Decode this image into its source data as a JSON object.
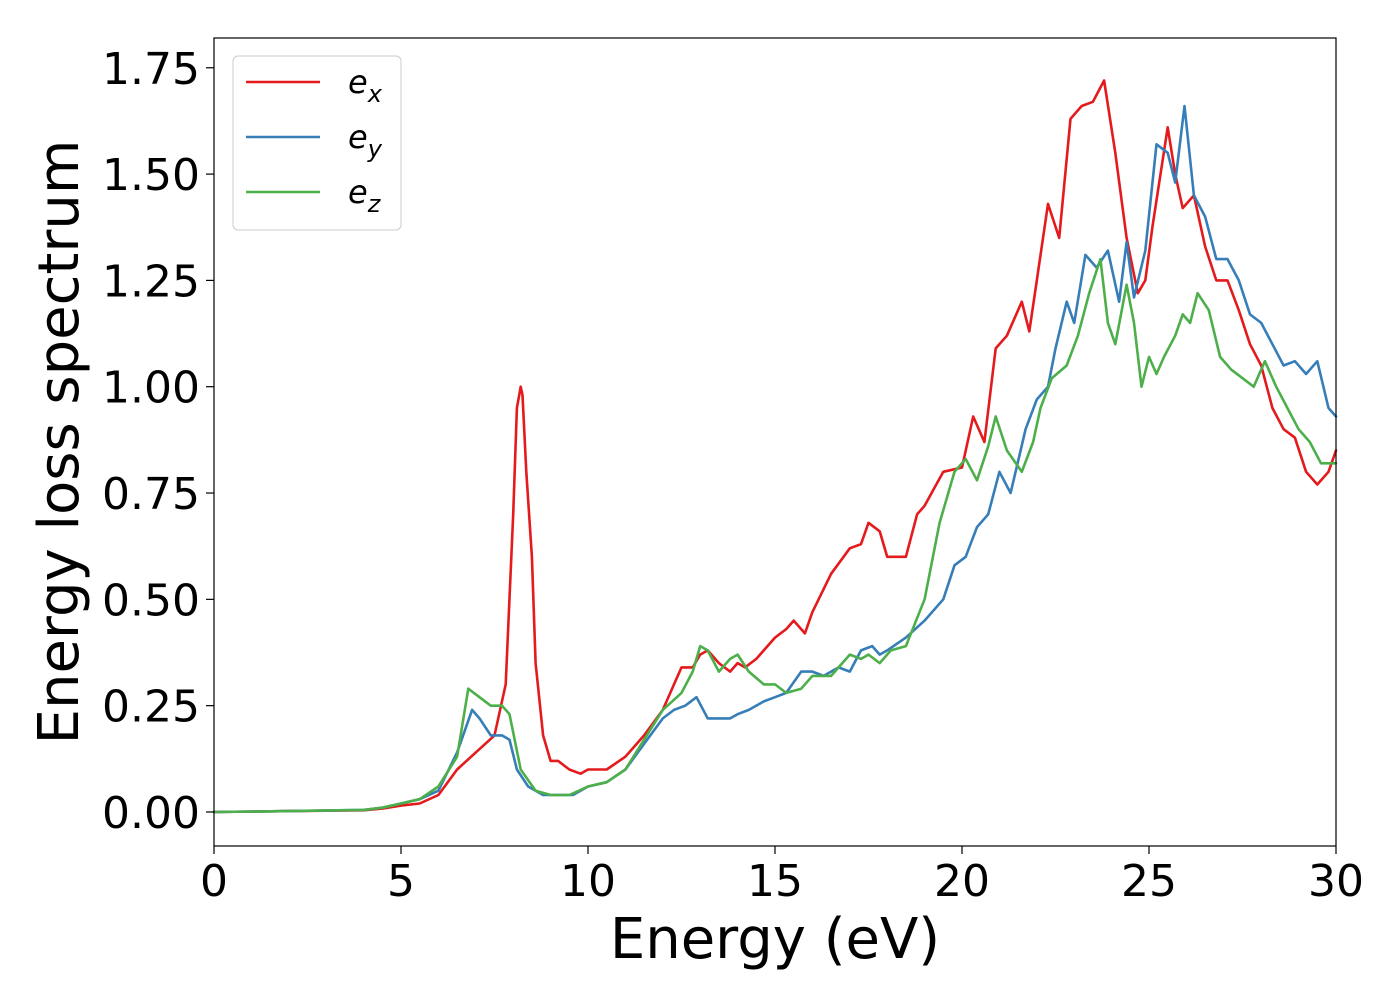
{
  "chart_data": {
    "type": "line",
    "title": "",
    "xlabel": "Energy (eV)",
    "ylabel": "Energy loss spectrum",
    "xlim": [
      0,
      30
    ],
    "ylim": [
      -0.08,
      1.82
    ],
    "xticks": [
      0,
      5,
      10,
      15,
      20,
      25,
      30
    ],
    "xtick_labels": [
      "0",
      "5",
      "10",
      "15",
      "20",
      "25",
      "30"
    ],
    "yticks": [
      0,
      0.25,
      0.5,
      0.75,
      1.0,
      1.25,
      1.5,
      1.75
    ],
    "ytick_labels": [
      "0.00",
      "0.25",
      "0.50",
      "0.75",
      "1.00",
      "1.25",
      "1.50",
      "1.75"
    ],
    "grid": false,
    "legend_position": "top-left",
    "series": [
      {
        "name": "e",
        "subscript": "x",
        "color": "#e41a1c",
        "x": [
          0,
          2,
          4,
          4.5,
          5,
          5.5,
          6,
          6.5,
          7,
          7.5,
          7.8,
          8.0,
          8.1,
          8.2,
          8.25,
          8.35,
          8.5,
          8.6,
          8.8,
          9.0,
          9.2,
          9.5,
          9.8,
          10,
          10.5,
          11,
          11.5,
          12,
          12.3,
          12.5,
          12.8,
          13,
          13.2,
          13.5,
          13.8,
          14,
          14.2,
          14.5,
          15,
          15.3,
          15.5,
          15.8,
          16,
          16.5,
          17,
          17.3,
          17.5,
          17.8,
          18,
          18.5,
          18.8,
          19,
          19.5,
          20,
          20.3,
          20.6,
          20.9,
          21.2,
          21.6,
          21.8,
          22,
          22.3,
          22.6,
          22.9,
          23.2,
          23.5,
          23.8,
          24.1,
          24.4,
          24.7,
          24.9,
          25.1,
          25.5,
          25.7,
          25.9,
          26.2,
          26.5,
          26.8,
          27.1,
          27.4,
          27.7,
          28,
          28.3,
          28.6,
          28.9,
          29.2,
          29.5,
          29.8,
          30
        ],
        "y": [
          0,
          0.002,
          0.004,
          0.008,
          0.015,
          0.02,
          0.04,
          0.1,
          0.14,
          0.18,
          0.3,
          0.7,
          0.95,
          1.0,
          0.98,
          0.8,
          0.6,
          0.35,
          0.18,
          0.12,
          0.12,
          0.1,
          0.09,
          0.1,
          0.1,
          0.13,
          0.18,
          0.24,
          0.3,
          0.34,
          0.34,
          0.37,
          0.38,
          0.35,
          0.33,
          0.35,
          0.34,
          0.36,
          0.41,
          0.43,
          0.45,
          0.42,
          0.47,
          0.56,
          0.62,
          0.63,
          0.68,
          0.66,
          0.6,
          0.6,
          0.7,
          0.72,
          0.8,
          0.81,
          0.93,
          0.87,
          1.09,
          1.12,
          1.2,
          1.13,
          1.25,
          1.43,
          1.35,
          1.63,
          1.66,
          1.67,
          1.72,
          1.55,
          1.35,
          1.22,
          1.25,
          1.38,
          1.61,
          1.5,
          1.42,
          1.45,
          1.33,
          1.25,
          1.25,
          1.18,
          1.1,
          1.05,
          0.95,
          0.9,
          0.88,
          0.8,
          0.77,
          0.8,
          0.85
        ]
      },
      {
        "name": "e",
        "subscript": "y",
        "color": "#377eb8",
        "x": [
          0,
          2,
          4,
          4.5,
          5,
          5.5,
          6,
          6.5,
          6.9,
          7.1,
          7.4,
          7.7,
          7.9,
          8.1,
          8.4,
          8.8,
          9.2,
          9.6,
          10,
          10.5,
          11,
          11.5,
          12,
          12.3,
          12.6,
          12.9,
          13.2,
          13.5,
          13.8,
          14,
          14.3,
          14.7,
          15,
          15.3,
          15.7,
          16,
          16.3,
          16.7,
          17,
          17.3,
          17.6,
          17.8,
          18,
          18.5,
          19,
          19.5,
          19.8,
          20.1,
          20.4,
          20.7,
          21,
          21.3,
          21.7,
          22,
          22.3,
          22.5,
          22.8,
          23,
          23.3,
          23.6,
          23.9,
          24.2,
          24.4,
          24.6,
          24.9,
          25.2,
          25.5,
          25.7,
          25.95,
          26.2,
          26.5,
          26.8,
          27.1,
          27.4,
          27.7,
          28,
          28.3,
          28.6,
          28.9,
          29.2,
          29.5,
          29.8,
          30
        ],
        "y": [
          0,
          0.002,
          0.005,
          0.01,
          0.02,
          0.03,
          0.05,
          0.14,
          0.24,
          0.22,
          0.18,
          0.18,
          0.17,
          0.1,
          0.06,
          0.04,
          0.04,
          0.04,
          0.06,
          0.07,
          0.1,
          0.16,
          0.22,
          0.24,
          0.25,
          0.27,
          0.22,
          0.22,
          0.22,
          0.23,
          0.24,
          0.26,
          0.27,
          0.28,
          0.33,
          0.33,
          0.32,
          0.34,
          0.33,
          0.38,
          0.39,
          0.37,
          0.38,
          0.41,
          0.45,
          0.5,
          0.58,
          0.6,
          0.67,
          0.7,
          0.8,
          0.75,
          0.9,
          0.97,
          1.0,
          1.09,
          1.2,
          1.15,
          1.31,
          1.28,
          1.32,
          1.2,
          1.34,
          1.21,
          1.32,
          1.57,
          1.55,
          1.48,
          1.66,
          1.45,
          1.4,
          1.3,
          1.3,
          1.25,
          1.17,
          1.15,
          1.1,
          1.05,
          1.06,
          1.03,
          1.06,
          0.95,
          0.93
        ]
      },
      {
        "name": "e",
        "subscript": "z",
        "color": "#4daf4a",
        "x": [
          0,
          2,
          4,
          4.5,
          5,
          5.5,
          6,
          6.5,
          6.8,
          7.1,
          7.4,
          7.7,
          7.9,
          8.2,
          8.6,
          9,
          9.5,
          10,
          10.5,
          11,
          11.5,
          12,
          12.5,
          12.8,
          13,
          13.2,
          13.5,
          13.8,
          14,
          14.3,
          14.7,
          15,
          15.3,
          15.7,
          16,
          16.5,
          17,
          17.3,
          17.5,
          17.8,
          18.1,
          18.5,
          19,
          19.4,
          19.8,
          20.1,
          20.4,
          20.7,
          20.9,
          21.2,
          21.6,
          21.9,
          22.1,
          22.4,
          22.8,
          23.1,
          23.4,
          23.7,
          23.9,
          24.1,
          24.4,
          24.6,
          24.8,
          25,
          25.2,
          25.4,
          25.7,
          25.9,
          26.1,
          26.3,
          26.6,
          26.9,
          27.2,
          27.5,
          27.8,
          28.1,
          28.4,
          28.7,
          29,
          29.3,
          29.6,
          30
        ],
        "y": [
          0,
          0.002,
          0.005,
          0.01,
          0.02,
          0.03,
          0.06,
          0.13,
          0.29,
          0.27,
          0.25,
          0.25,
          0.23,
          0.1,
          0.05,
          0.04,
          0.04,
          0.06,
          0.07,
          0.1,
          0.17,
          0.24,
          0.28,
          0.33,
          0.39,
          0.38,
          0.33,
          0.36,
          0.37,
          0.33,
          0.3,
          0.3,
          0.28,
          0.29,
          0.32,
          0.32,
          0.37,
          0.36,
          0.37,
          0.35,
          0.38,
          0.39,
          0.5,
          0.68,
          0.8,
          0.83,
          0.78,
          0.86,
          0.93,
          0.85,
          0.8,
          0.87,
          0.95,
          1.02,
          1.05,
          1.12,
          1.22,
          1.3,
          1.15,
          1.1,
          1.24,
          1.15,
          1.0,
          1.07,
          1.03,
          1.07,
          1.12,
          1.17,
          1.15,
          1.22,
          1.18,
          1.07,
          1.04,
          1.02,
          1.0,
          1.06,
          1.0,
          0.95,
          0.9,
          0.87,
          0.82,
          0.82
        ]
      }
    ]
  }
}
